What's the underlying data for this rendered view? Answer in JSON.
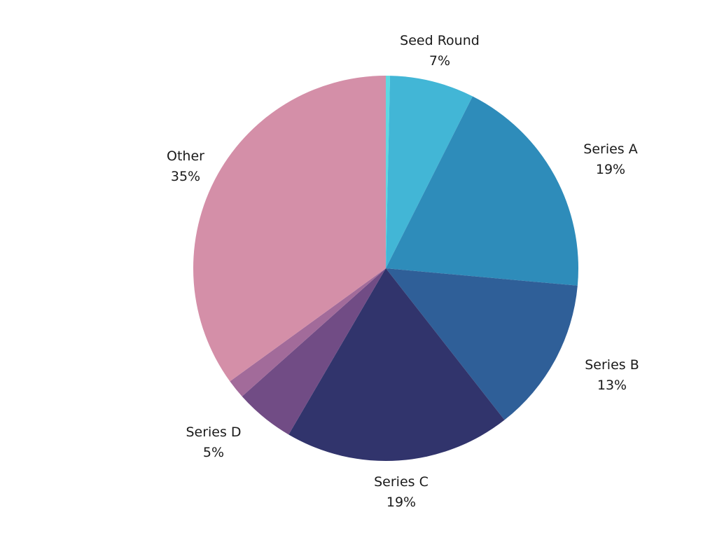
{
  "chart_data": {
    "type": "pie",
    "title": "",
    "start": "top",
    "direction": "clockwise",
    "slices": [
      {
        "name": "",
        "value": 0.35,
        "label": "",
        "pct": "",
        "color": "#5ed9e2"
      },
      {
        "name": "Seed Round",
        "value": 7.1,
        "label": "Seed Round",
        "pct": "7%",
        "color": "#42b6d6"
      },
      {
        "name": "Series A",
        "value": 19,
        "label": "Series A",
        "pct": "19%",
        "color": "#2e8cba"
      },
      {
        "name": "Series B",
        "value": 13,
        "label": "Series B",
        "pct": "13%",
        "color": "#2f5f98"
      },
      {
        "name": "Series C",
        "value": 19,
        "label": "Series C",
        "pct": "19%",
        "color": "#31346c"
      },
      {
        "name": "Series D",
        "value": 5,
        "label": "Series D",
        "pct": "5%",
        "color": "#714c85"
      },
      {
        "name": "",
        "value": 1.6,
        "label": "",
        "pct": "",
        "color": "#a26b9a"
      },
      {
        "name": "Other",
        "value": 35,
        "label": "Other",
        "pct": "35%",
        "color": "#d48fa8"
      }
    ]
  }
}
